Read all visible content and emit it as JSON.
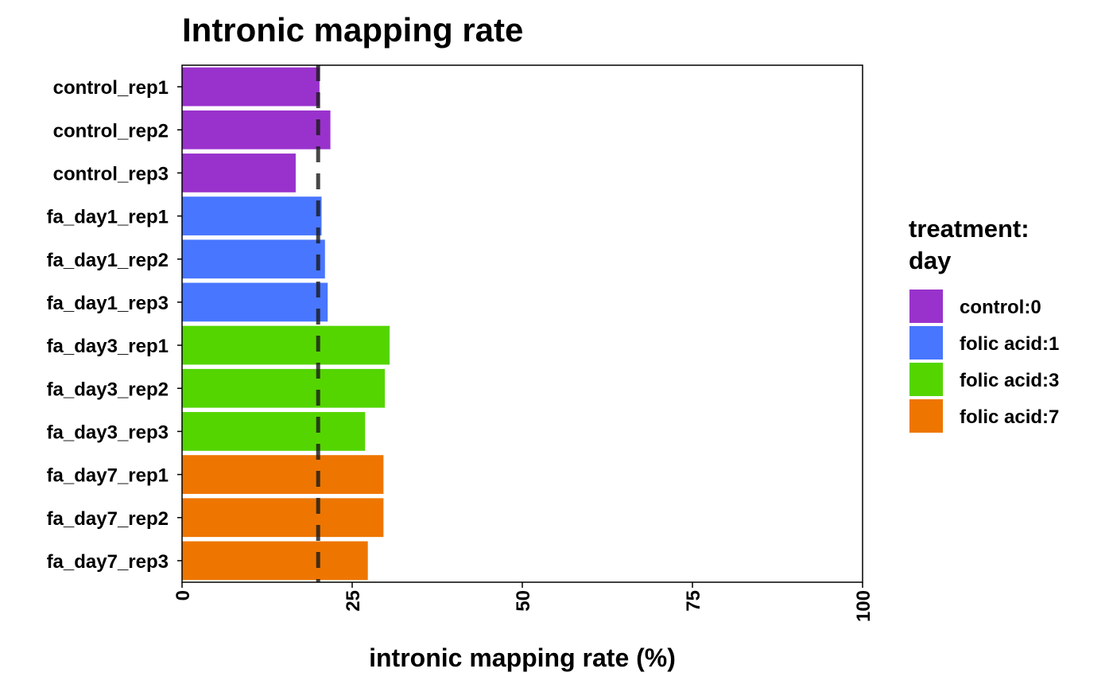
{
  "chart_data": {
    "type": "bar",
    "orientation": "horizontal",
    "title": "Intronic mapping rate",
    "xlabel": "intronic mapping rate (%)",
    "ylabel": "",
    "xlim": [
      0,
      100
    ],
    "x_ticks": [
      0,
      25,
      50,
      75,
      100
    ],
    "x_tick_labels": [
      "0",
      "25",
      "50",
      "75",
      "100"
    ],
    "grid": false,
    "reference_line": {
      "value": 20,
      "style": "dashed",
      "color": "#1a1a1a"
    },
    "categories": [
      "control_rep1",
      "control_rep2",
      "control_rep3",
      "fa_day1_rep1",
      "fa_day1_rep2",
      "fa_day1_rep3",
      "fa_day3_rep1",
      "fa_day3_rep2",
      "fa_day3_rep3",
      "fa_day7_rep1",
      "fa_day7_rep2",
      "fa_day7_rep3"
    ],
    "values": [
      20.2,
      21.8,
      16.7,
      20.5,
      21.0,
      21.4,
      30.5,
      29.8,
      26.9,
      29.6,
      29.6,
      27.3
    ],
    "groups": [
      "control:0",
      "control:0",
      "control:0",
      "folic acid:1",
      "folic acid:1",
      "folic acid:1",
      "folic acid:3",
      "folic acid:3",
      "folic acid:3",
      "folic acid:7",
      "folic acid:7",
      "folic acid:7"
    ],
    "legend": {
      "title_lines": [
        "treatment:",
        "day"
      ],
      "position": "right",
      "items": [
        {
          "label": "control:0",
          "color": "#9932CC"
        },
        {
          "label": "folic acid:1",
          "color": "#4876FF"
        },
        {
          "label": "folic acid:3",
          "color": "#54D500"
        },
        {
          "label": "folic acid:7",
          "color": "#EE7600"
        }
      ]
    }
  }
}
